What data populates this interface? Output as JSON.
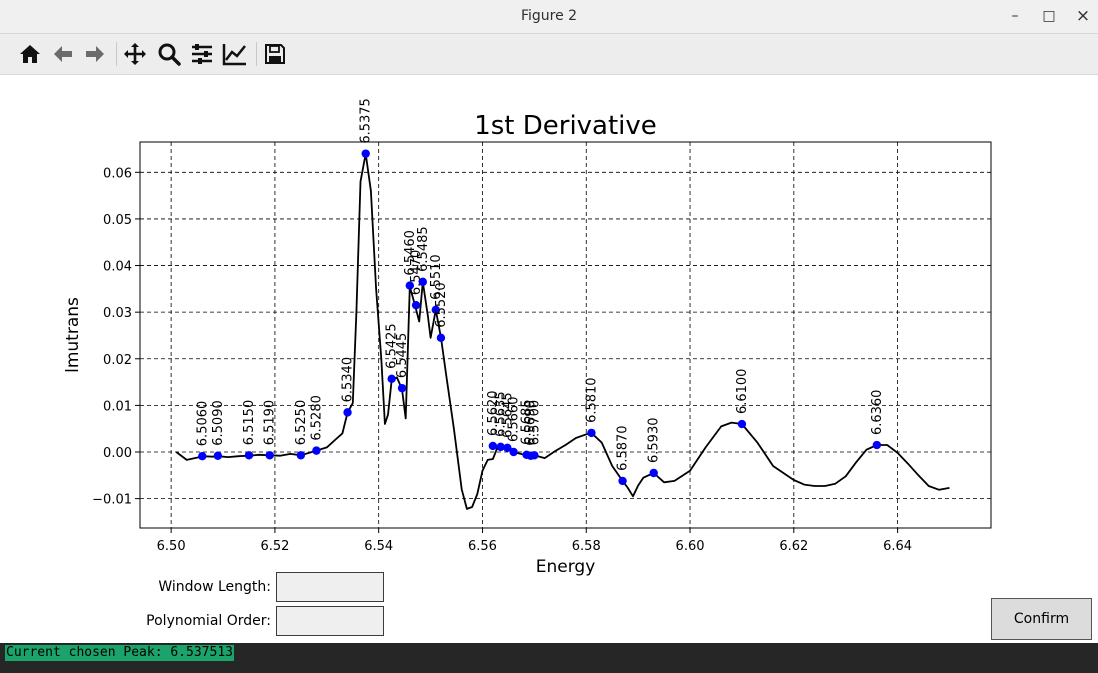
{
  "window": {
    "title": "Figure 2",
    "minimize_glyph": "–",
    "maximize_glyph": "□",
    "close_glyph": "×"
  },
  "toolbar": {
    "icons": [
      "home-icon",
      "back-arrow-icon",
      "forward-arrow-icon",
      "pan-icon",
      "zoom-icon",
      "subplots-config-icon",
      "edit-axis-icon",
      "save-icon"
    ]
  },
  "chart_data": {
    "type": "line",
    "title": "1st Derivative",
    "xlabel": "Energy",
    "ylabel": "lmutrans",
    "xlim": [
      6.494,
      6.658
    ],
    "ylim": [
      -0.0163,
      0.0665
    ],
    "xticks": [
      6.5,
      6.52,
      6.54,
      6.56,
      6.58,
      6.6,
      6.62,
      6.64
    ],
    "xtick_labels": [
      "6.50",
      "6.52",
      "6.54",
      "6.56",
      "6.58",
      "6.60",
      "6.62",
      "6.64"
    ],
    "yticks": [
      -0.01,
      0.0,
      0.01,
      0.02,
      0.03,
      0.04,
      0.05,
      0.06
    ],
    "ytick_labels": [
      "−0.01",
      "0.00",
      "0.01",
      "0.02",
      "0.03",
      "0.04",
      "0.05",
      "0.06"
    ],
    "grid": true,
    "line_color": "#000000",
    "marker_color": "#0000ff",
    "curve": {
      "x": [
        6.501,
        6.503,
        6.505,
        6.506,
        6.508,
        6.509,
        6.511,
        6.513,
        6.515,
        6.517,
        6.519,
        6.521,
        6.523,
        6.525,
        6.528,
        6.53,
        6.532,
        6.533,
        6.534,
        6.535,
        6.5357,
        6.5365,
        6.5375,
        6.5385,
        6.5395,
        6.5405,
        6.5412,
        6.5418,
        6.5425,
        6.5435,
        6.5445,
        6.5452,
        6.546,
        6.547,
        6.5478,
        6.5485,
        6.5495,
        6.55,
        6.551,
        6.552,
        6.553,
        6.5545,
        6.556,
        6.557,
        6.558,
        6.559,
        6.56,
        6.561,
        6.562,
        6.563,
        6.564,
        6.565,
        6.566,
        6.568,
        6.569,
        6.57,
        6.572,
        6.574,
        6.576,
        6.578,
        6.58,
        6.581,
        6.583,
        6.585,
        6.587,
        6.588,
        6.589,
        6.59,
        6.591,
        6.593,
        6.595,
        6.597,
        6.6,
        6.603,
        6.606,
        6.608,
        6.61,
        6.613,
        6.616,
        6.618,
        6.62,
        6.622,
        6.624,
        6.626,
        6.628,
        6.63,
        6.632,
        6.634,
        6.636,
        6.638,
        6.64,
        6.642,
        6.644,
        6.646,
        6.648,
        6.65
      ],
      "y": [
        0.0,
        -0.0017,
        -0.0012,
        -0.0009,
        -0.001,
        -0.0009,
        -0.0011,
        -0.0009,
        -0.0008,
        -0.0006,
        -0.0007,
        -0.0008,
        -0.0004,
        -0.0007,
        0.0003,
        0.001,
        0.003,
        0.004,
        0.0085,
        0.0105,
        0.03,
        0.058,
        0.064,
        0.056,
        0.035,
        0.02,
        0.006,
        0.008,
        0.0155,
        0.016,
        0.0135,
        0.0072,
        0.0355,
        0.0315,
        0.028,
        0.0365,
        0.029,
        0.0245,
        0.0305,
        0.0245,
        0.0165,
        0.005,
        -0.008,
        -0.0122,
        -0.0118,
        -0.009,
        -0.004,
        -0.0017,
        -0.0015,
        0.0013,
        0.0011,
        0.0009,
        0.0,
        -0.0006,
        -0.0008,
        -0.0007,
        -0.0013,
        0.0002,
        0.0015,
        0.003,
        0.0038,
        0.0041,
        0.002,
        -0.003,
        -0.0062,
        -0.0077,
        -0.0095,
        -0.0072,
        -0.0055,
        -0.0045,
        -0.0065,
        -0.0062,
        -0.004,
        0.001,
        0.0055,
        0.0063,
        0.006,
        0.002,
        -0.003,
        -0.0045,
        -0.006,
        -0.007,
        -0.0073,
        -0.0073,
        -0.0068,
        -0.0052,
        -0.0022,
        0.0005,
        0.0015,
        0.0015,
        -0.0002,
        -0.0025,
        -0.005,
        -0.0073,
        -0.0081,
        -0.0077
      ]
    },
    "peaks": [
      {
        "x": 6.506,
        "y": -0.0009,
        "label": "6.5060"
      },
      {
        "x": 6.509,
        "y": -0.0008,
        "label": "6.5090"
      },
      {
        "x": 6.515,
        "y": -0.0007,
        "label": "6.5150"
      },
      {
        "x": 6.519,
        "y": -0.0007,
        "label": "6.5190"
      },
      {
        "x": 6.525,
        "y": -0.0007,
        "label": "6.5250"
      },
      {
        "x": 6.528,
        "y": 0.0003,
        "label": "6.5280"
      },
      {
        "x": 6.534,
        "y": 0.0085,
        "label": "6.5340"
      },
      {
        "x": 6.5375,
        "y": 0.064,
        "label": "6.5375"
      },
      {
        "x": 6.5425,
        "y": 0.0157,
        "label": "6.5425"
      },
      {
        "x": 6.5445,
        "y": 0.0137,
        "label": "6.5445"
      },
      {
        "x": 6.546,
        "y": 0.0357,
        "label": "6.5460"
      },
      {
        "x": 6.5472,
        "y": 0.0315,
        "label": "6.5470"
      },
      {
        "x": 6.5485,
        "y": 0.0365,
        "label": "6.5485"
      },
      {
        "x": 6.551,
        "y": 0.0305,
        "label": "6.5510"
      },
      {
        "x": 6.552,
        "y": 0.0245,
        "label": "6.5520"
      },
      {
        "x": 6.562,
        "y": 0.0013,
        "label": "6.5620"
      },
      {
        "x": 6.5635,
        "y": 0.0011,
        "label": "6.5635"
      },
      {
        "x": 6.5648,
        "y": 0.0009,
        "label": "6.5645"
      },
      {
        "x": 6.566,
        "y": 0.0,
        "label": "6.5660"
      },
      {
        "x": 6.5685,
        "y": -0.0006,
        "label": "6.5685"
      },
      {
        "x": 6.5693,
        "y": -0.0008,
        "label": "6.5690"
      },
      {
        "x": 6.57,
        "y": -0.0007,
        "label": "6.5700"
      },
      {
        "x": 6.581,
        "y": 0.0041,
        "label": "6.5810"
      },
      {
        "x": 6.587,
        "y": -0.0062,
        "label": "6.5870"
      },
      {
        "x": 6.593,
        "y": -0.0045,
        "label": "6.5930"
      },
      {
        "x": 6.61,
        "y": 0.006,
        "label": "6.6100"
      },
      {
        "x": 6.636,
        "y": 0.0015,
        "label": "6.6360"
      }
    ]
  },
  "controls": {
    "window_length_label": "Window Length:",
    "window_length_value": "",
    "polynomial_order_label": "Polynomial Order:",
    "polynomial_order_value": "",
    "confirm_label": "Confirm"
  },
  "status": {
    "message": "Current chosen Peak: 6.537513"
  }
}
